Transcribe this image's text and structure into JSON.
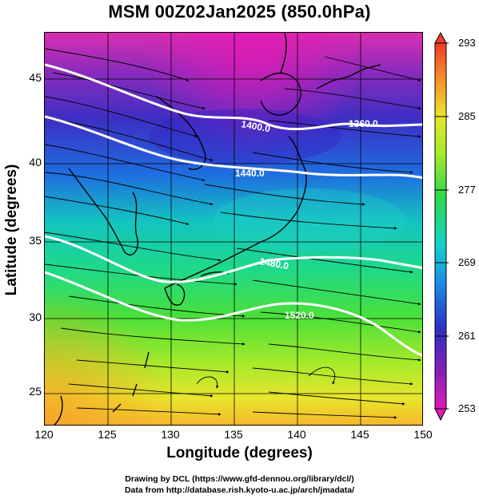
{
  "title": "MSM 00Z02Jan2025 (850.0hPa)",
  "axes": {
    "xlabel": "Longitude (degrees)",
    "ylabel": "Latitude  (degrees)",
    "xticks": [
      "120",
      "125",
      "130",
      "135",
      "140",
      "145",
      "150"
    ],
    "yticks": [
      "45",
      "40",
      "35",
      "30",
      "25"
    ]
  },
  "map_data": {
    "type": "contour-streamline-map",
    "xlim": [
      120,
      150
    ],
    "ylim": [
      22.4,
      47.6
    ],
    "contour_labels": [
      "1360.0",
      "1400.0",
      "1440.0",
      "1480.0",
      "1520.0"
    ],
    "colorbar": {
      "ticks": [
        "293",
        "285",
        "277",
        "269",
        "261",
        "253"
      ],
      "min": 253,
      "max": 293
    }
  },
  "credits": {
    "line1": "Drawing by DCL (https://www.gfd-dennou.org/library/dcl/)",
    "line2": "Data from http://database.rish.kyoto-u.ac.jp/arch/jmadata/"
  }
}
